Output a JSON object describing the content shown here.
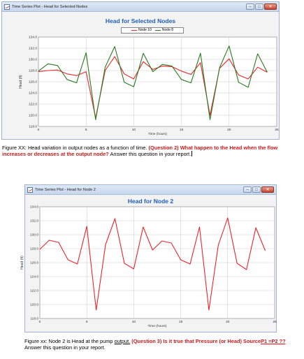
{
  "window1": {
    "title": "Time Series Plot - Head for Selected Nodes",
    "controls": {
      "minimize": "–",
      "maximize": "□",
      "close": "✕"
    }
  },
  "window2": {
    "title": "Time Series Plot - Head for Node 2",
    "controls": {
      "minimize": "–",
      "maximize": "□",
      "close": "✕"
    }
  },
  "caption1": {
    "prefix": "Figure XX: Head variation in output nodes as a function of time. ",
    "question": "(Question 2) What happen to the Head when the flow increases or decreases at the output node?",
    "suffix": " Answer this question in your report."
  },
  "caption2": {
    "prefix": "Figure xx: Node 2 is Head at the pump ",
    "underlined": "output.",
    "question": " (Question 3) Is it true that Pressure (or Head) ",
    "source": "Source",
    "equation": "P1 =P2 ??",
    "suffix": " Answer this question in your report."
  },
  "chart_data": [
    {
      "type": "line",
      "title": "Head for Selected Nodes",
      "xlabel": "Time (hours)",
      "ylabel": "Head (ft)",
      "xlim": [
        0,
        25
      ],
      "ylim": [
        118,
        134
      ],
      "x_ticks": [
        "0",
        "5",
        "10",
        "15",
        "20",
        "25"
      ],
      "y_ticks": [
        "118.0",
        "120.0",
        "122.0",
        "124.0",
        "126.0",
        "128.0",
        "130.0",
        "132.0",
        "134.0"
      ],
      "grid": true,
      "legend": "top-center",
      "x": [
        0,
        1,
        2,
        3,
        4,
        5,
        6,
        7,
        8,
        9,
        10,
        11,
        12,
        13,
        14,
        15,
        16,
        17,
        18,
        19,
        20,
        21,
        22,
        23,
        24
      ],
      "series": [
        {
          "name": "Node 10",
          "color": "#e8252b",
          "values": [
            127.8,
            128.0,
            128.1,
            127.4,
            127.1,
            127.8,
            119.5,
            128.0,
            130.5,
            127.4,
            126.5,
            129.6,
            128.2,
            128.8,
            128.7,
            127.9,
            127.3,
            129.4,
            120.0,
            128.4,
            130.1,
            127.2,
            126.5,
            128.6,
            127.7
          ]
        },
        {
          "name": "Node 8",
          "color": "#2a7a1f",
          "values": [
            127.9,
            129.2,
            128.9,
            126.4,
            125.8,
            131.2,
            119.2,
            128.6,
            132.3,
            125.9,
            125.1,
            131.1,
            127.8,
            129.1,
            128.8,
            126.4,
            125.8,
            131.1,
            119.2,
            128.5,
            132.4,
            125.9,
            125.0,
            131.0,
            127.7
          ]
        }
      ]
    },
    {
      "type": "line",
      "title": "Head for Node 2",
      "xlabel": "Time (hours)",
      "ylabel": "Head (ft)",
      "xlim": [
        0,
        25
      ],
      "ylim": [
        118,
        134
      ],
      "x_ticks": [
        "0",
        "5",
        "10",
        "15",
        "20",
        "25"
      ],
      "y_ticks": [
        "118.0",
        "120.0",
        "122.0",
        "124.0",
        "126.0",
        "128.0",
        "130.0",
        "132.0",
        "134.0"
      ],
      "grid": true,
      "x": [
        0,
        1,
        2,
        3,
        4,
        5,
        6,
        7,
        8,
        9,
        10,
        11,
        12,
        13,
        14,
        15,
        16,
        17,
        18,
        19,
        20,
        21,
        22,
        23,
        24
      ],
      "series": [
        {
          "name": "Node 2",
          "color": "#e8252b",
          "values": [
            127.9,
            129.2,
            128.9,
            126.4,
            125.8,
            131.2,
            119.2,
            128.6,
            132.3,
            125.9,
            125.1,
            131.1,
            127.8,
            129.1,
            128.8,
            126.4,
            125.8,
            131.1,
            119.2,
            128.5,
            132.4,
            125.9,
            125.0,
            131.0,
            127.7
          ]
        }
      ]
    }
  ]
}
